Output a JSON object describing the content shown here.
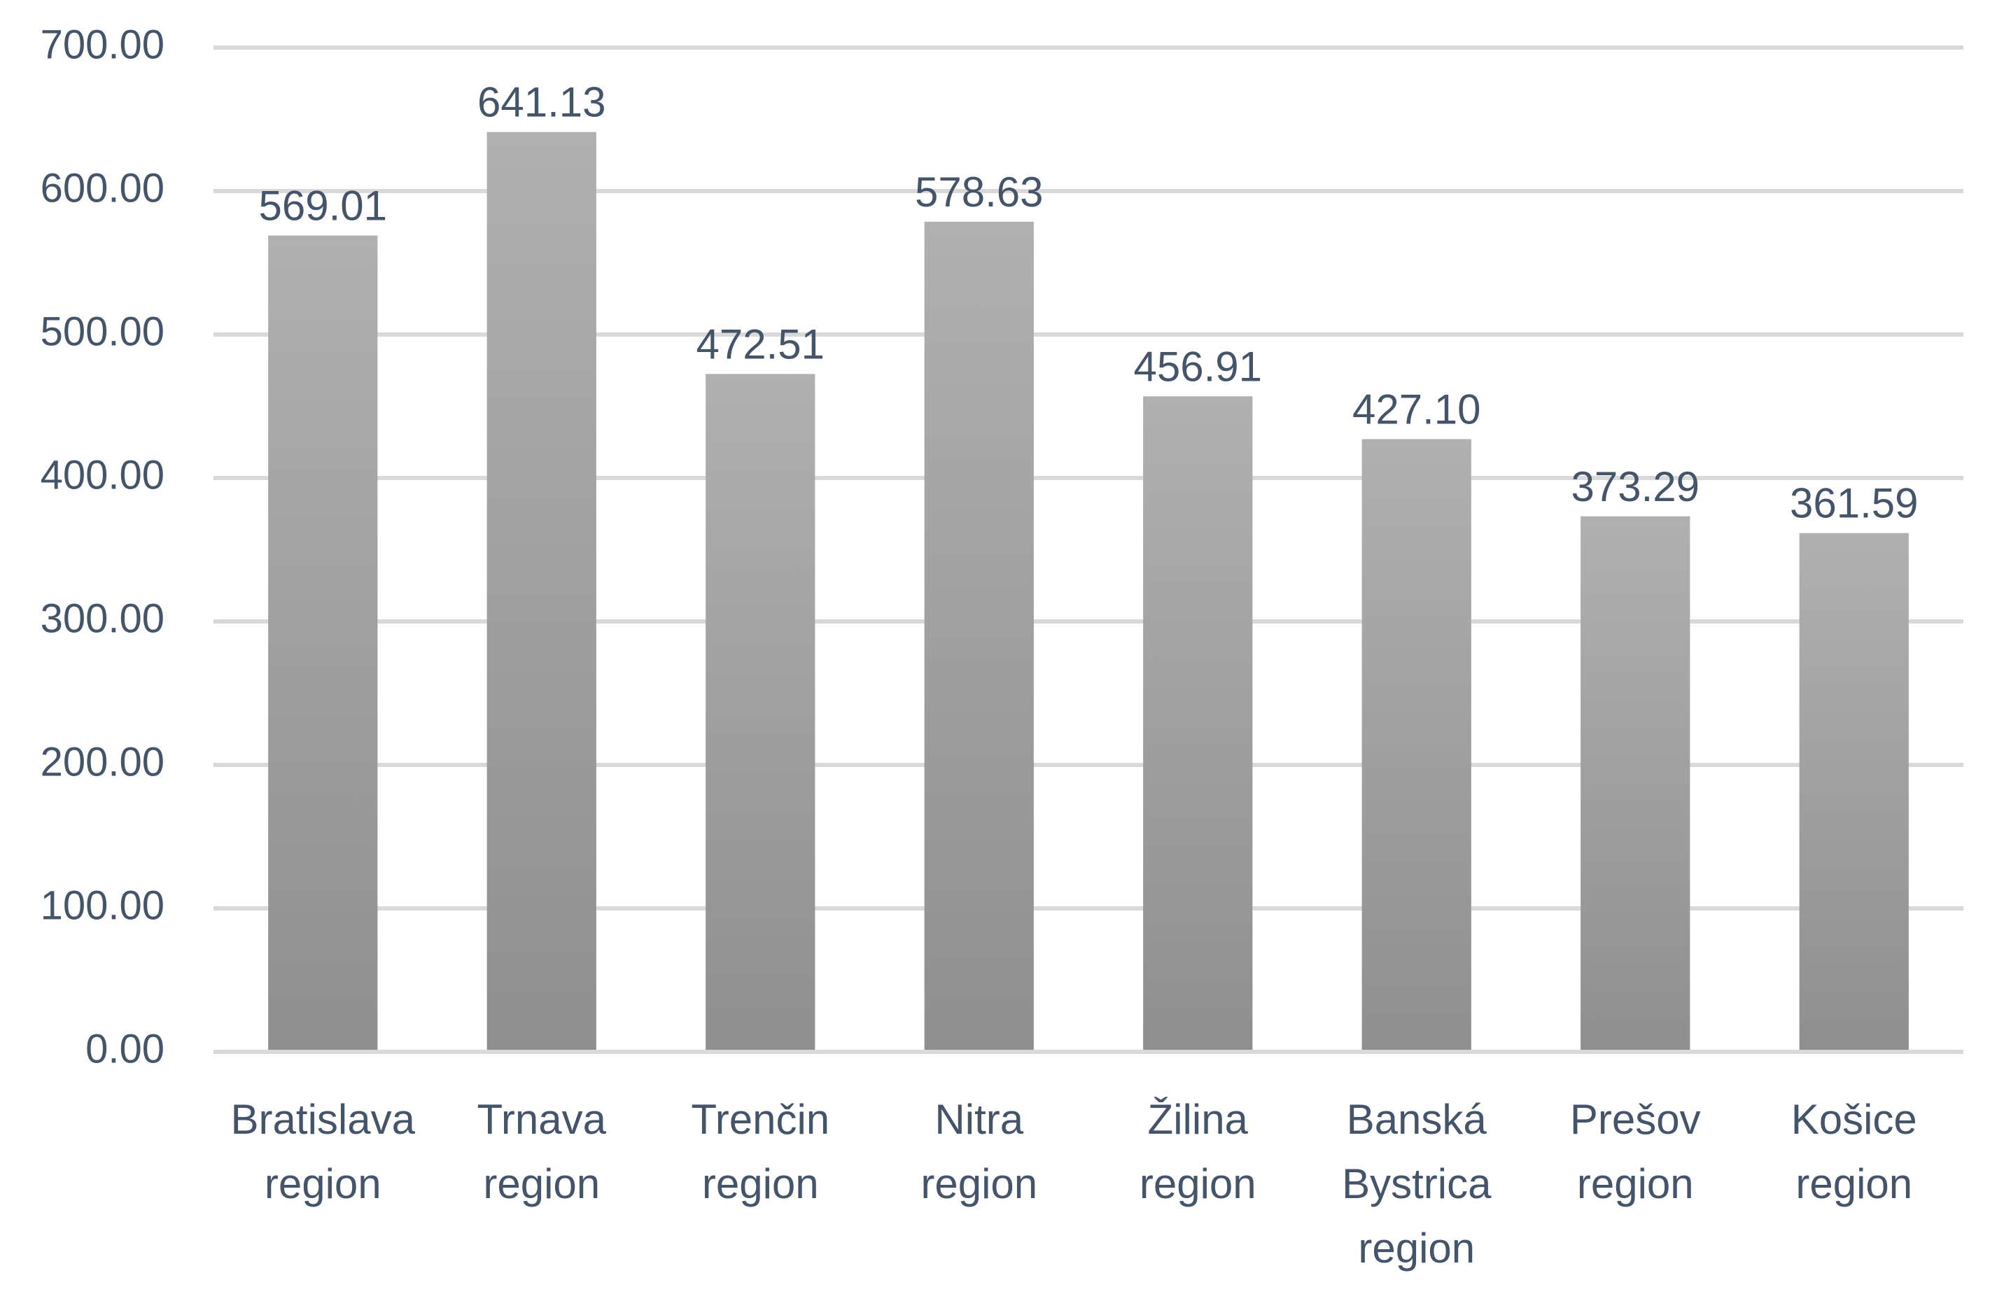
{
  "chart_data": {
    "type": "bar",
    "title": "",
    "xlabel": "",
    "ylabel": "",
    "categories": [
      [
        "Bratislava",
        "region"
      ],
      [
        "Trnava",
        "region"
      ],
      [
        "Trenčin",
        "region"
      ],
      [
        "Nitra",
        "region"
      ],
      [
        "Žilina",
        "region"
      ],
      [
        "Banská",
        "Bystrica",
        "region"
      ],
      [
        "Prešov",
        "region"
      ],
      [
        "Košice",
        "region"
      ]
    ],
    "values": [
      569.01,
      641.13,
      472.51,
      578.63,
      456.91,
      427.1,
      373.29,
      361.59
    ],
    "value_labels": [
      "569.01",
      "641.13",
      "472.51",
      "578.63",
      "456.91",
      "427.10",
      "373.29",
      "361.59"
    ],
    "ylim": [
      0,
      700
    ],
    "yticks": [
      0,
      100,
      200,
      300,
      400,
      500,
      600,
      700
    ],
    "ytick_labels": [
      "0.00",
      "100.00",
      "200.00",
      "300.00",
      "400.00",
      "500.00",
      "600.00",
      "700.00"
    ],
    "grid": true,
    "legend": "none",
    "colors": {
      "bar_top": "#b0b0b0",
      "bar_bottom": "#8f8f8f",
      "grid": "#d9d9d9",
      "text": "#44546a"
    }
  }
}
